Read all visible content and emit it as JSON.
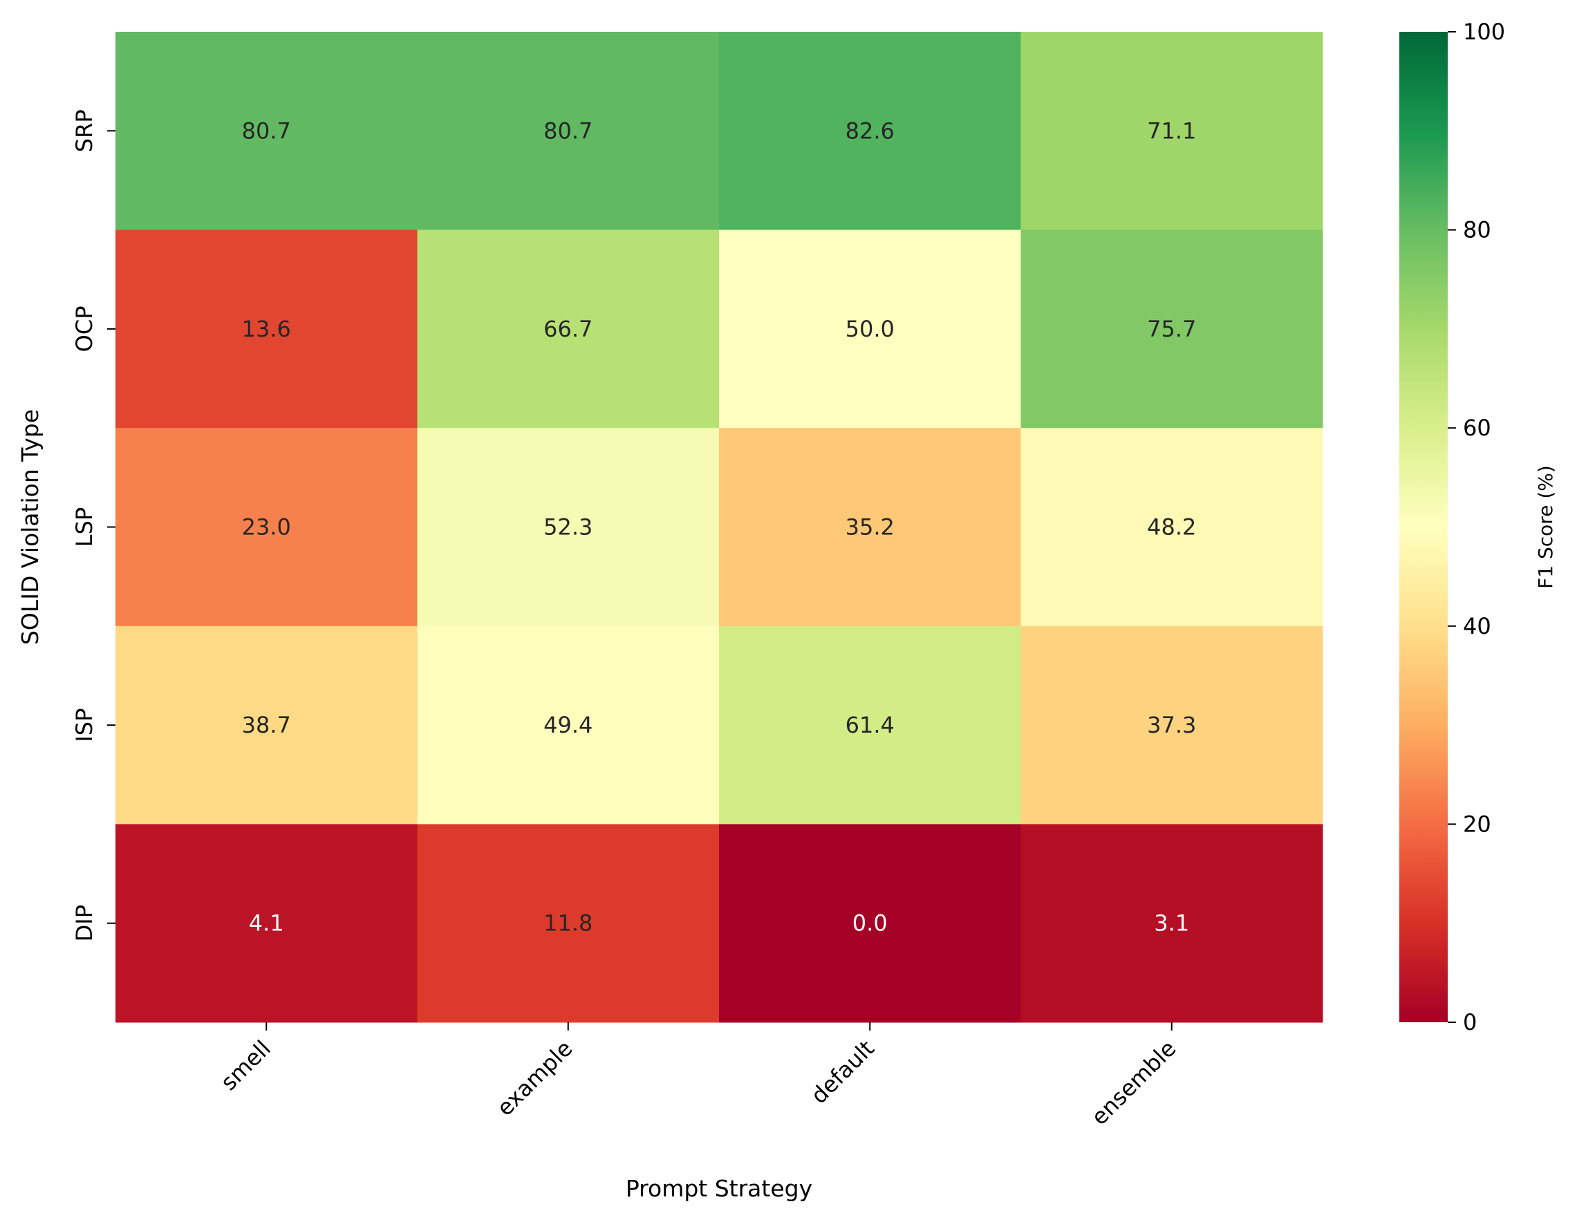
{
  "chart_data": {
    "type": "heatmap",
    "xlabel": "Prompt Strategy",
    "ylabel": "SOLID Violation Type",
    "x_categories": [
      "smell",
      "example",
      "default",
      "ensemble"
    ],
    "y_categories": [
      "SRP",
      "OCP",
      "LSP",
      "ISP",
      "DIP"
    ],
    "values": [
      [
        80.7,
        80.7,
        82.6,
        71.1
      ],
      [
        13.6,
        66.7,
        50.0,
        75.7
      ],
      [
        23.0,
        52.3,
        35.2,
        48.2
      ],
      [
        38.7,
        49.4,
        61.4,
        37.3
      ],
      [
        4.1,
        11.8,
        0.0,
        3.1
      ]
    ],
    "value_format": "0.1f",
    "colormap": "RdYlGn",
    "colorbar": {
      "label": "F1 Score (%)",
      "range": [
        0,
        100
      ],
      "ticks": [
        0,
        20,
        40,
        60,
        80,
        100
      ]
    }
  }
}
